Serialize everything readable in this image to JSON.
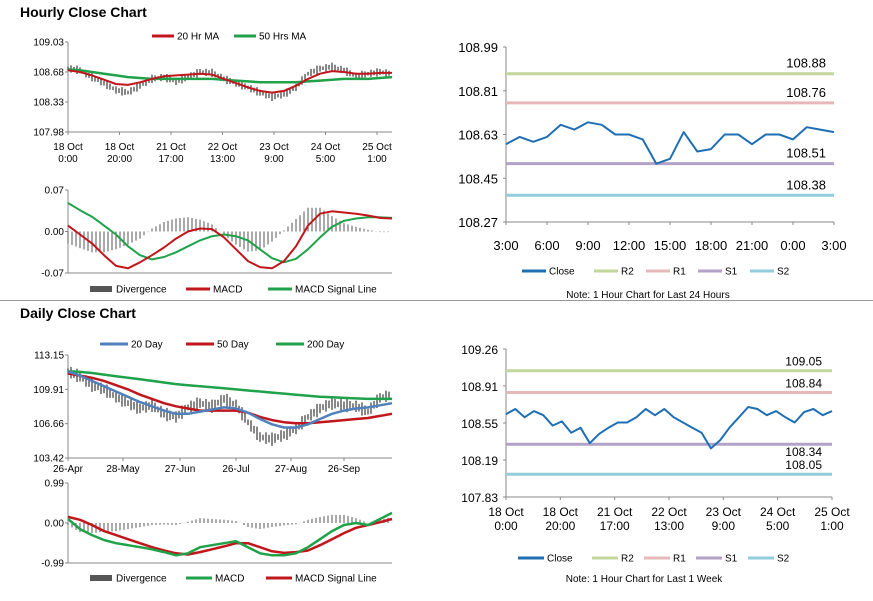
{
  "hourly": {
    "title": "Hourly Close Chart",
    "price": {
      "legend": [
        "20 Hr MA",
        "50 Hrs MA"
      ],
      "colors": {
        "close": "#111111",
        "ma1": "#C0161C",
        "ma2": "#1FA24A"
      },
      "yticks": [
        "109.03",
        "108.68",
        "108.33",
        "107.98"
      ],
      "xlabels": [
        [
          "18 Oct",
          "0:00"
        ],
        [
          "18 Oct",
          "20:00"
        ],
        [
          "21 Oct",
          "17:00"
        ],
        [
          "22 Oct",
          "13:00"
        ],
        [
          "23 Oct",
          "9:00"
        ],
        [
          "24 Oct",
          "5:00"
        ],
        [
          "25 Oct",
          "1:00"
        ]
      ],
      "close": [
        108.72,
        108.7,
        108.62,
        108.55,
        108.47,
        108.44,
        108.52,
        108.6,
        108.62,
        108.57,
        108.62,
        108.68,
        108.67,
        108.6,
        108.55,
        108.5,
        108.44,
        108.39,
        108.42,
        108.5,
        108.66,
        108.72,
        108.74,
        108.7,
        108.63,
        108.66,
        108.68,
        108.66
      ],
      "ma1": [
        108.7,
        108.68,
        108.64,
        108.59,
        108.54,
        108.53,
        108.56,
        108.6,
        108.63,
        108.64,
        108.65,
        108.66,
        108.65,
        108.6,
        108.55,
        108.5,
        108.46,
        108.44,
        108.46,
        108.52,
        108.6,
        108.66,
        108.69,
        108.68,
        108.66,
        108.66,
        108.67,
        108.67
      ],
      "ma2": [
        108.71,
        108.7,
        108.68,
        108.66,
        108.64,
        108.62,
        108.61,
        108.6,
        108.6,
        108.6,
        108.6,
        108.6,
        108.6,
        108.59,
        108.58,
        108.57,
        108.56,
        108.56,
        108.56,
        108.56,
        108.57,
        108.58,
        108.59,
        108.6,
        108.6,
        108.6,
        108.61,
        108.62
      ],
      "ylim": [
        107.98,
        109.03
      ]
    },
    "macd": {
      "legend": [
        "Divergence",
        "MACD",
        "MACD Signal Line"
      ],
      "colors": {
        "div": "#555555",
        "macd": "#C0161C",
        "signal": "#1FA24A"
      },
      "yticks": [
        "0.07",
        "0.00",
        "-0.07"
      ],
      "macd": [
        0.01,
        -0.005,
        -0.02,
        -0.04,
        -0.058,
        -0.062,
        -0.052,
        -0.04,
        -0.027,
        -0.012,
        0.0,
        0.005,
        0.004,
        -0.01,
        -0.03,
        -0.05,
        -0.06,
        -0.062,
        -0.05,
        -0.025,
        0.01,
        0.03,
        0.034,
        0.032,
        0.03,
        0.027,
        0.023,
        0.022
      ],
      "signal": [
        0.048,
        0.036,
        0.025,
        0.01,
        -0.005,
        -0.025,
        -0.04,
        -0.047,
        -0.043,
        -0.035,
        -0.025,
        -0.015,
        -0.008,
        -0.005,
        -0.008,
        -0.015,
        -0.03,
        -0.045,
        -0.052,
        -0.046,
        -0.03,
        -0.01,
        0.008,
        0.018,
        0.022,
        0.024,
        0.024,
        0.023
      ],
      "div": [
        -0.02,
        -0.028,
        -0.035,
        -0.035,
        -0.03,
        -0.022,
        -0.012,
        0.005,
        0.016,
        0.022,
        0.024,
        0.02,
        0.012,
        -0.006,
        -0.022,
        -0.034,
        -0.032,
        -0.017,
        0.002,
        0.021,
        0.04,
        0.04,
        0.026,
        0.014,
        0.008,
        0.003,
        -0.001,
        -0.001
      ],
      "ylim": [
        -0.07,
        0.07
      ]
    },
    "pivot": {
      "yticks": [
        "108.99",
        "108.81",
        "108.63",
        "108.45",
        "108.27"
      ],
      "ylim": [
        108.27,
        108.99
      ],
      "xlabels": [
        "3:00",
        "6:00",
        "9:00",
        "12:00",
        "15:00",
        "18:00",
        "21:00",
        "0:00",
        "3:00"
      ],
      "levels": [
        {
          "name": "R2",
          "value": 108.88,
          "label": "108.88",
          "color": "#C3D69B"
        },
        {
          "name": "R1",
          "value": 108.76,
          "label": "108.76",
          "color": "#E6B9B8"
        },
        {
          "name": "S1",
          "value": 108.51,
          "label": "108.51",
          "color": "#B3A2C7"
        },
        {
          "name": "S2",
          "value": 108.38,
          "label": "108.38",
          "color": "#93CDDD"
        }
      ],
      "close": [
        108.59,
        108.62,
        108.6,
        108.62,
        108.67,
        108.65,
        108.68,
        108.67,
        108.63,
        108.63,
        108.61,
        108.51,
        108.53,
        108.64,
        108.56,
        108.57,
        108.63,
        108.63,
        108.59,
        108.63,
        108.63,
        108.61,
        108.66,
        108.65,
        108.64
      ],
      "close_color": "#1F6FB5",
      "legend_close": "Close",
      "note": "Note: 1 Hour Chart for Last 24 Hours"
    }
  },
  "daily": {
    "title": "Daily Close Chart",
    "price": {
      "legend": [
        "20 Day",
        "50 Day",
        "200 Day"
      ],
      "colors": {
        "close": "#111111",
        "ma20": "#4F81BD",
        "ma50": "#C0161C",
        "ma200": "#1FA24A"
      },
      "yticks": [
        "113.15",
        "109.91",
        "106.66",
        "103.42"
      ],
      "xlabels": [
        "26-Apr",
        "28-May",
        "27-Jun",
        "26-Jul",
        "27-Aug",
        "26-Sep"
      ],
      "close": [
        111.6,
        111.1,
        110.3,
        109.9,
        109.2,
        108.6,
        108.1,
        108.4,
        107.6,
        107.3,
        108.2,
        108.6,
        108.3,
        109.0,
        108.4,
        106.8,
        105.4,
        105.2,
        105.6,
        106.2,
        107.3,
        108.1,
        108.6,
        108.4,
        108.3,
        107.8,
        109.1,
        109.4
      ],
      "ma20": [
        111.6,
        111.2,
        110.7,
        110.2,
        109.7,
        109.2,
        108.7,
        108.3,
        107.9,
        107.6,
        107.6,
        107.8,
        108.0,
        108.2,
        108.1,
        107.7,
        107.1,
        106.6,
        106.3,
        106.3,
        106.6,
        107.1,
        107.6,
        107.9,
        108.1,
        108.2,
        108.4,
        108.6
      ],
      "ma50": [
        111.4,
        111.2,
        111.0,
        110.7,
        110.3,
        109.9,
        109.4,
        109.0,
        108.6,
        108.3,
        108.1,
        107.9,
        107.9,
        107.9,
        107.9,
        107.7,
        107.3,
        107.0,
        106.8,
        106.7,
        106.7,
        106.8,
        106.9,
        107.0,
        107.1,
        107.2,
        107.4,
        107.6
      ],
      "ma200": [
        111.6,
        111.55,
        111.45,
        111.3,
        111.15,
        111.0,
        110.85,
        110.7,
        110.55,
        110.4,
        110.3,
        110.2,
        110.1,
        110.0,
        109.9,
        109.8,
        109.7,
        109.6,
        109.5,
        109.4,
        109.3,
        109.2,
        109.15,
        109.1,
        109.05,
        109.0,
        109.0,
        109.0
      ],
      "ylim": [
        103.42,
        113.15
      ]
    },
    "macd": {
      "legend": [
        "Divergence",
        "MACD",
        "MACD Signal Line"
      ],
      "colors": {
        "div": "#555555",
        "macd": "#1FA24A",
        "signal": "#C0161C"
      },
      "yticks": [
        "0.99",
        "0.00",
        "-0.99"
      ],
      "macd": [
        0.1,
        -0.15,
        -0.3,
        -0.42,
        -0.5,
        -0.55,
        -0.6,
        -0.65,
        -0.72,
        -0.8,
        -0.75,
        -0.6,
        -0.55,
        -0.5,
        -0.45,
        -0.6,
        -0.75,
        -0.8,
        -0.8,
        -0.75,
        -0.6,
        -0.4,
        -0.2,
        -0.05,
        0.0,
        -0.05,
        0.1,
        0.25
      ],
      "signal": [
        0.15,
        0.08,
        -0.05,
        -0.2,
        -0.3,
        -0.4,
        -0.5,
        -0.6,
        -0.68,
        -0.75,
        -0.78,
        -0.72,
        -0.65,
        -0.58,
        -0.5,
        -0.5,
        -0.6,
        -0.7,
        -0.74,
        -0.72,
        -0.68,
        -0.55,
        -0.4,
        -0.25,
        -0.12,
        -0.05,
        0.02,
        0.1
      ],
      "div": [
        -0.05,
        -0.23,
        -0.25,
        -0.22,
        -0.2,
        -0.15,
        -0.1,
        -0.05,
        -0.04,
        -0.05,
        0.03,
        0.12,
        0.1,
        0.08,
        0.05,
        -0.1,
        -0.15,
        -0.1,
        -0.06,
        -0.03,
        0.08,
        0.15,
        0.2,
        0.2,
        0.12,
        0.0,
        0.08,
        0.15
      ],
      "ylim": [
        -0.99,
        0.99
      ]
    },
    "pivot": {
      "yticks": [
        "109.26",
        "108.91",
        "108.55",
        "108.19",
        "107.83"
      ],
      "ylim": [
        107.83,
        109.26
      ],
      "xlabels": [
        [
          "18 Oct",
          "0:00"
        ],
        [
          "18 Oct",
          "20:00"
        ],
        [
          "21 Oct",
          "17:00"
        ],
        [
          "22 Oct",
          "13:00"
        ],
        [
          "23 Oct",
          "9:00"
        ],
        [
          "24 Oct",
          "5:00"
        ],
        [
          "25 Oct",
          "1:00"
        ]
      ],
      "levels": [
        {
          "name": "R2",
          "value": 109.05,
          "label": "109.05",
          "color": "#C3D69B"
        },
        {
          "name": "R1",
          "value": 108.84,
          "label": "108.84",
          "color": "#E6B9B8"
        },
        {
          "name": "S1",
          "value": 108.34,
          "label": "108.34",
          "color": "#B3A2C7"
        },
        {
          "name": "S2",
          "value": 108.05,
          "label": "108.05",
          "color": "#93CDDD"
        }
      ],
      "close": [
        108.63,
        108.68,
        108.6,
        108.66,
        108.62,
        108.52,
        108.56,
        108.45,
        108.5,
        108.35,
        108.44,
        108.5,
        108.55,
        108.55,
        108.6,
        108.68,
        108.62,
        108.68,
        108.6,
        108.55,
        108.5,
        108.45,
        108.3,
        108.38,
        108.5,
        108.6,
        108.7,
        108.68,
        108.62,
        108.66,
        108.6,
        108.55,
        108.65,
        108.68,
        108.62,
        108.66
      ],
      "close_color": "#1F6FB5",
      "legend_close": "Close",
      "note": "Note: 1 Hour Chart for Last 1 Week"
    }
  }
}
